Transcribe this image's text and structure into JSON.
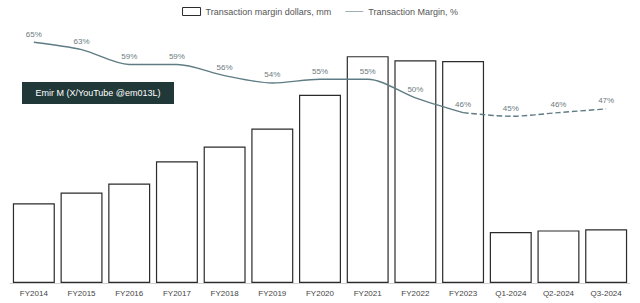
{
  "chart_data": {
    "type": "bar",
    "categories": [
      "FY2014",
      "FY2015",
      "FY2016",
      "FY2017",
      "FY2018",
      "FY2019",
      "FY2020",
      "FY2021",
      "FY2022",
      "FY2023",
      "Q1-2024",
      "Q2-2024",
      "Q3-2024"
    ],
    "series": [
      {
        "name": "Transaction margin dollars, mm",
        "type": "bar",
        "color": "#ffffff",
        "values": [
          4850,
          5500,
          6050,
          7400,
          8300,
          9400,
          11450,
          13800,
          13550,
          13500,
          3100,
          3200,
          3270
        ]
      },
      {
        "name": "Transaction Margin, %",
        "type": "line",
        "color": "#5f7c84",
        "axis": "y2",
        "line_style": "solid",
        "marker": "none",
        "values": [
          65,
          63,
          59,
          59,
          56,
          54,
          55,
          55,
          50,
          46,
          null,
          null,
          null
        ],
        "value_labels": [
          "65%",
          "63%",
          "59%",
          "59%",
          "56%",
          "54%",
          "55%",
          "55%",
          "50%",
          "46%",
          null,
          null,
          null
        ]
      },
      {
        "name": "Transaction Margin, %",
        "type": "line",
        "color": "#5f7c84",
        "axis": "y2",
        "line_style": "dashed",
        "marker": "none",
        "values": [
          null,
          null,
          null,
          null,
          null,
          null,
          null,
          null,
          null,
          46,
          45,
          46,
          47
        ],
        "value_labels": [
          null,
          null,
          null,
          null,
          null,
          null,
          null,
          null,
          null,
          "46%",
          "45%",
          "46%",
          "47%"
        ]
      }
    ],
    "annotations": [
      "Emir M (X/YouTube @em013L)"
    ],
    "ylim": [
      0,
      16000
    ],
    "yticks": [
      0,
      16000
    ],
    "y2lim": [
      0,
      71
    ],
    "y2ticks": [
      0,
      71
    ],
    "tick_labels": "x",
    "legend": "top",
    "data_labels": true,
    "grid": false
  }
}
